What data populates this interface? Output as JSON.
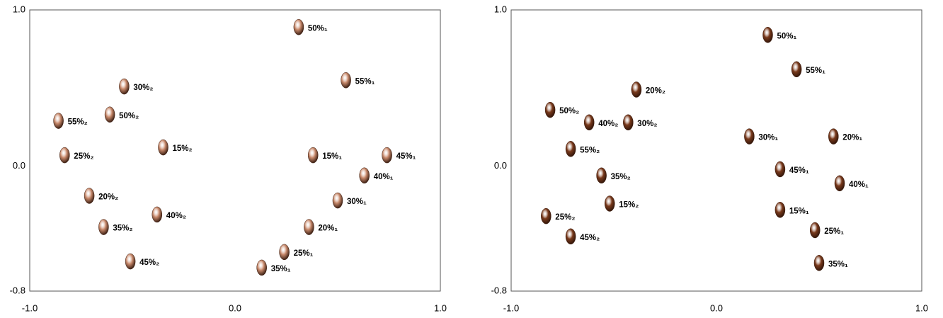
{
  "chart_data": [
    {
      "type": "scatter",
      "color": "#c98a6c",
      "xlim": [
        -1.0,
        1.0
      ],
      "ylim": [
        -0.8,
        1.0
      ],
      "xticks": [
        {
          "value": -1.0,
          "label": "-1.0"
        },
        {
          "value": 0.0,
          "label": "0.0"
        },
        {
          "value": 1.0,
          "label": "1.0"
        }
      ],
      "yticks": [
        {
          "value": -0.8,
          "label": "-0.8"
        },
        {
          "value": 0.0,
          "label": "0.0"
        },
        {
          "value": 1.0,
          "label": "1.0"
        }
      ],
      "points": [
        {
          "label": "50%₁",
          "x": 0.31,
          "y": 0.89
        },
        {
          "label": "55%₁",
          "x": 0.54,
          "y": 0.55
        },
        {
          "label": "30%₂",
          "x": -0.54,
          "y": 0.51
        },
        {
          "label": "50%₂",
          "x": -0.61,
          "y": 0.33
        },
        {
          "label": "55%₂",
          "x": -0.86,
          "y": 0.29
        },
        {
          "label": "15%₂",
          "x": -0.35,
          "y": 0.12
        },
        {
          "label": "25%₂",
          "x": -0.83,
          "y": 0.07
        },
        {
          "label": "15%₁",
          "x": 0.38,
          "y": 0.07
        },
        {
          "label": "45%₁",
          "x": 0.74,
          "y": 0.07
        },
        {
          "label": "40%₁",
          "x": 0.63,
          "y": -0.06
        },
        {
          "label": "20%₂",
          "x": -0.71,
          "y": -0.19
        },
        {
          "label": "30%₁",
          "x": 0.5,
          "y": -0.22
        },
        {
          "label": "40%₂",
          "x": -0.38,
          "y": -0.31
        },
        {
          "label": "35%₂",
          "x": -0.64,
          "y": -0.39
        },
        {
          "label": "20%₁",
          "x": 0.36,
          "y": -0.39
        },
        {
          "label": "25%₁",
          "x": 0.24,
          "y": -0.55
        },
        {
          "label": "45%₂",
          "x": -0.51,
          "y": -0.61
        },
        {
          "label": "35%₁",
          "x": 0.13,
          "y": -0.65
        }
      ]
    },
    {
      "type": "scatter",
      "color": "#7a3a1c",
      "xlim": [
        -1.0,
        1.0
      ],
      "ylim": [
        -0.8,
        1.0
      ],
      "xticks": [
        {
          "value": -1.0,
          "label": "-1.0"
        },
        {
          "value": 0.0,
          "label": "0.0"
        },
        {
          "value": 1.0,
          "label": "1.0"
        }
      ],
      "yticks": [
        {
          "value": -0.8,
          "label": "-0.8"
        },
        {
          "value": 0.0,
          "label": "0.0"
        },
        {
          "value": 1.0,
          "label": "1.0"
        }
      ],
      "points": [
        {
          "label": "50%₁",
          "x": 0.25,
          "y": 0.84
        },
        {
          "label": "55%₁",
          "x": 0.39,
          "y": 0.62
        },
        {
          "label": "20%₂",
          "x": -0.39,
          "y": 0.49
        },
        {
          "label": "50%₂",
          "x": -0.81,
          "y": 0.36
        },
        {
          "label": "40%₂",
          "x": -0.62,
          "y": 0.28
        },
        {
          "label": "30%₂",
          "x": -0.43,
          "y": 0.28
        },
        {
          "label": "30%₁",
          "x": 0.16,
          "y": 0.19
        },
        {
          "label": "20%₁",
          "x": 0.57,
          "y": 0.19
        },
        {
          "label": "55%₂",
          "x": -0.71,
          "y": 0.11
        },
        {
          "label": "45%₁",
          "x": 0.31,
          "y": -0.02
        },
        {
          "label": "35%₂",
          "x": -0.56,
          "y": -0.06
        },
        {
          "label": "40%₁",
          "x": 0.6,
          "y": -0.11
        },
        {
          "label": "15%₂",
          "x": -0.52,
          "y": -0.24
        },
        {
          "label": "15%₁",
          "x": 0.31,
          "y": -0.28
        },
        {
          "label": "25%₂",
          "x": -0.83,
          "y": -0.32
        },
        {
          "label": "25%₁",
          "x": 0.48,
          "y": -0.41
        },
        {
          "label": "45%₂",
          "x": -0.71,
          "y": -0.45
        },
        {
          "label": "35%₁",
          "x": 0.5,
          "y": -0.62
        }
      ]
    }
  ]
}
